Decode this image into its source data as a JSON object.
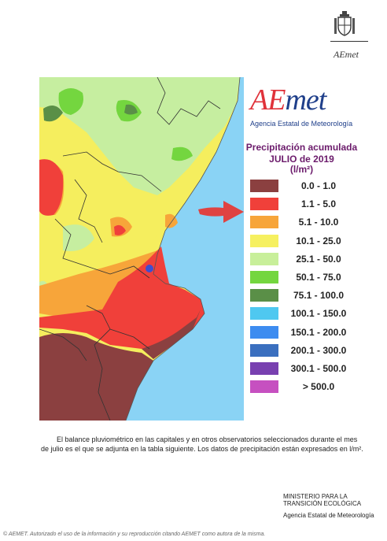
{
  "header": {
    "crest_icon": "spanish-coat-of-arms-icon",
    "logo_text": "AEmet"
  },
  "legend": {
    "brand_a": "AE",
    "brand_b": "met",
    "brand_subtitle": "Agencia Estatal de Meteorología",
    "title_line1": "Precipitación acumulada",
    "title_line2": "JULIO de 2019",
    "unit": "(l/m²)",
    "classes": [
      {
        "label": "0.0 - 1.0",
        "color": "#8b4040"
      },
      {
        "label": "1.1 - 5.0",
        "color": "#f0403a"
      },
      {
        "label": "5.1 - 10.0",
        "color": "#f7a53a"
      },
      {
        "label": "10.1 - 25.0",
        "color": "#f6f060"
      },
      {
        "label": "25.1 - 50.0",
        "color": "#c8ef9a"
      },
      {
        "label": "50.1 - 75.0",
        "color": "#74d63f"
      },
      {
        "label": "75.1 - 100.0",
        "color": "#5a8f47"
      },
      {
        "label": "100.1 - 150.0",
        "color": "#4fc8f0"
      },
      {
        "label": "150.1 - 200.0",
        "color": "#3d8cf0"
      },
      {
        "label": "200.1 - 300.0",
        "color": "#3a6fbf"
      },
      {
        "label": "300.1 - 500.0",
        "color": "#7840b0"
      },
      {
        "label": "> 500.0",
        "color": "#c650c0"
      }
    ]
  },
  "annotation": {
    "arrow_icon": "red-arrow-icon",
    "arrow_color": "#e8332f"
  },
  "note": {
    "text": "El balance pluviométrico en las capitales y en otros observatorios seleccionados durante el mes de julio es el que se adjunta en la tabla siguiente. Los datos de precipitación están expresados en l/m²."
  },
  "ministry": {
    "line1": "MINISTERIO PARA LA",
    "line2": "TRANSICIÓN ECOLÓGICA",
    "agency": "Agencia Estatal  de Meteorología"
  },
  "footer": {
    "text": "© AEMET. Autorizado el uso de la información y su reproducción citando AEMET como autora de la misma."
  }
}
